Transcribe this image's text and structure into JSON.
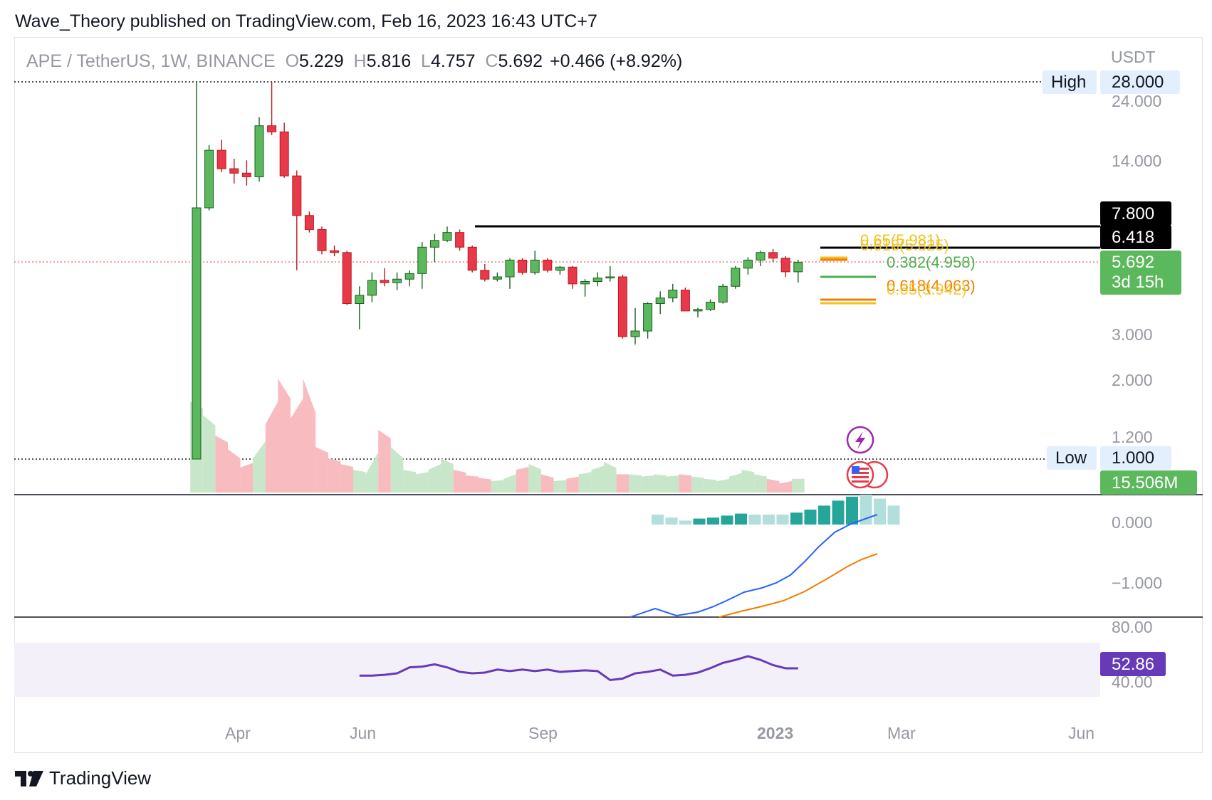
{
  "header": {
    "published_line": "Wave_Theory published on TradingView.com, Feb 16, 2023 16:43 UTC+7"
  },
  "legend": {
    "symbol": "APE / TetherUS, 1W, BINANCE",
    "o_label": "O",
    "o_value": "5.229",
    "h_label": "H",
    "h_value": "5.816",
    "l_label": "L",
    "l_value": "4.757",
    "c_label": "C",
    "c_value": "5.692",
    "change": "+0.466 (+8.92%)"
  },
  "footer": {
    "brand": "TradingView"
  },
  "colors": {
    "up": "#26a69a",
    "up_candle": "#5cb85c",
    "down_candle": "#e8394a",
    "macd": "#2962ff",
    "signal": "#f57c00",
    "rsi": "#673ab7",
    "fib_gold": "#f2c21b",
    "fib_orange": "#f57c00",
    "fib_green": "#4caf50"
  },
  "price_axis": {
    "unit": "USDT",
    "labels": [
      "28.000",
      "24.000",
      "14.000",
      "3.000",
      "2.000",
      "1.200"
    ],
    "high_label": "High",
    "high_value": "28.000",
    "low_label": "Low",
    "low_value": "1.000",
    "tag_7800": "7.800",
    "tag_6418": "6.418",
    "current_price": "5.692",
    "countdown": "3d 15h",
    "volume_tag": "15.506M"
  },
  "fib_labels": {
    "upper_a": "0.65(5.981)",
    "upper_b": "0.618(5.825)",
    "mid": "0.382(4.958)",
    "lower_a": "0.618(4.063)",
    "lower_b": "0.65(3.942)"
  },
  "macd_axis": {
    "labels": [
      "0.000",
      "−1.000"
    ]
  },
  "rsi_axis": {
    "labels": [
      "80.00",
      "40.00"
    ],
    "current": "52.86"
  },
  "time_axis": {
    "labels": [
      "Apr",
      "Jun",
      "Sep",
      "2023",
      "Mar",
      "Jun"
    ]
  },
  "chart_data": {
    "type": "candlestick",
    "symbol": "APE / TetherUS",
    "interval": "1W",
    "candles": [
      {
        "o": 1.0,
        "h": 28.0,
        "l": 1.0,
        "c": 9.2
      },
      {
        "o": 9.2,
        "h": 16.0,
        "l": 9.0,
        "c": 15.3
      },
      {
        "o": 15.3,
        "h": 16.8,
        "l": 12.6,
        "c": 13.0
      },
      {
        "o": 13.0,
        "h": 14.2,
        "l": 11.4,
        "c": 12.5
      },
      {
        "o": 12.5,
        "h": 14.0,
        "l": 11.2,
        "c": 12.1
      },
      {
        "o": 12.1,
        "h": 20.5,
        "l": 11.6,
        "c": 19.0
      },
      {
        "o": 19.0,
        "h": 28.0,
        "l": 17.5,
        "c": 18.0
      },
      {
        "o": 18.0,
        "h": 19.5,
        "l": 12.0,
        "c": 12.2
      },
      {
        "o": 12.2,
        "h": 12.8,
        "l": 5.3,
        "c": 8.6
      },
      {
        "o": 8.6,
        "h": 8.9,
        "l": 7.4,
        "c": 7.6
      },
      {
        "o": 7.6,
        "h": 7.8,
        "l": 6.1,
        "c": 6.3
      },
      {
        "o": 6.3,
        "h": 6.6,
        "l": 6.0,
        "c": 6.2
      },
      {
        "o": 6.2,
        "h": 6.3,
        "l": 3.9,
        "c": 3.95
      },
      {
        "o": 3.95,
        "h": 4.6,
        "l": 3.15,
        "c": 4.25
      },
      {
        "o": 4.25,
        "h": 5.2,
        "l": 4.0,
        "c": 4.85
      },
      {
        "o": 4.85,
        "h": 5.4,
        "l": 4.6,
        "c": 4.75
      },
      {
        "o": 4.75,
        "h": 5.2,
        "l": 4.45,
        "c": 4.9
      },
      {
        "o": 4.9,
        "h": 5.3,
        "l": 4.6,
        "c": 5.15
      },
      {
        "o": 5.15,
        "h": 6.8,
        "l": 4.5,
        "c": 6.5
      },
      {
        "o": 6.5,
        "h": 7.3,
        "l": 5.7,
        "c": 6.9
      },
      {
        "o": 6.9,
        "h": 7.8,
        "l": 6.8,
        "c": 7.4
      },
      {
        "o": 7.4,
        "h": 7.6,
        "l": 6.3,
        "c": 6.5
      },
      {
        "o": 6.5,
        "h": 6.6,
        "l": 5.2,
        "c": 5.3
      },
      {
        "o": 5.3,
        "h": 5.6,
        "l": 4.8,
        "c": 4.9
      },
      {
        "o": 4.9,
        "h": 5.2,
        "l": 4.8,
        "c": 5.0
      },
      {
        "o": 5.0,
        "h": 5.9,
        "l": 4.5,
        "c": 5.8
      },
      {
        "o": 5.8,
        "h": 5.9,
        "l": 5.1,
        "c": 5.2
      },
      {
        "o": 5.2,
        "h": 6.3,
        "l": 5.1,
        "c": 5.8
      },
      {
        "o": 5.8,
        "h": 5.9,
        "l": 5.2,
        "c": 5.3
      },
      {
        "o": 5.3,
        "h": 5.5,
        "l": 5.1,
        "c": 5.45
      },
      {
        "o": 5.45,
        "h": 5.5,
        "l": 4.5,
        "c": 4.7
      },
      {
        "o": 4.7,
        "h": 4.9,
        "l": 4.2,
        "c": 4.8
      },
      {
        "o": 4.8,
        "h": 5.2,
        "l": 4.6,
        "c": 4.95
      },
      {
        "o": 4.95,
        "h": 5.5,
        "l": 4.8,
        "c": 5.0
      },
      {
        "o": 5.0,
        "h": 5.1,
        "l": 2.9,
        "c": 2.95
      },
      {
        "o": 2.95,
        "h": 3.8,
        "l": 2.75,
        "c": 3.1
      },
      {
        "o": 3.1,
        "h": 4.0,
        "l": 2.9,
        "c": 3.95
      },
      {
        "o": 3.95,
        "h": 4.4,
        "l": 3.6,
        "c": 4.15
      },
      {
        "o": 4.15,
        "h": 4.7,
        "l": 4.0,
        "c": 4.45
      },
      {
        "o": 4.45,
        "h": 4.55,
        "l": 3.9,
        "c": 3.7
      },
      {
        "o": 3.7,
        "h": 3.8,
        "l": 3.5,
        "c": 3.75
      },
      {
        "o": 3.75,
        "h": 4.1,
        "l": 3.7,
        "c": 4.0
      },
      {
        "o": 4.0,
        "h": 4.7,
        "l": 3.95,
        "c": 4.6
      },
      {
        "o": 4.6,
        "h": 5.5,
        "l": 4.5,
        "c": 5.4
      },
      {
        "o": 5.4,
        "h": 5.95,
        "l": 5.1,
        "c": 5.8
      },
      {
        "o": 5.8,
        "h": 6.3,
        "l": 5.5,
        "c": 6.2
      },
      {
        "o": 6.2,
        "h": 6.4,
        "l": 5.7,
        "c": 5.9
      },
      {
        "o": 5.9,
        "h": 6.0,
        "l": 5.0,
        "c": 5.229
      },
      {
        "o": 5.229,
        "h": 5.816,
        "l": 4.757,
        "c": 5.692
      }
    ],
    "volume_relative": [
      0.8,
      0.68,
      0.5,
      0.38,
      0.22,
      0.3,
      0.6,
      1.0,
      0.65,
      1.0,
      0.4,
      0.3,
      0.25,
      0.2,
      0.16,
      0.55,
      0.4,
      0.2,
      0.16,
      0.2,
      0.3,
      0.2,
      0.15,
      0.13,
      0.1,
      0.12,
      0.2,
      0.25,
      0.16,
      0.1,
      0.12,
      0.16,
      0.2,
      0.27,
      0.16,
      0.16,
      0.14,
      0.16,
      0.14,
      0.16,
      0.14,
      0.12,
      0.1,
      0.14,
      0.2,
      0.16,
      0.12,
      0.08,
      0.12
    ],
    "rsi": [
      null,
      null,
      null,
      null,
      null,
      null,
      null,
      null,
      null,
      null,
      null,
      null,
      null,
      48.0,
      48.0,
      48.5,
      49.5,
      53.5,
      54.0,
      55.5,
      53.5,
      50.5,
      49.5,
      50.0,
      52.0,
      51.0,
      52.0,
      51.0,
      52.0,
      50.5,
      51.0,
      51.5,
      51.0,
      45.0,
      46.0,
      49.5,
      50.5,
      52.0,
      48.0,
      48.5,
      50.0,
      53.0,
      56.5,
      58.5,
      61.0,
      58.5,
      55.0,
      52.86,
      52.86
    ],
    "fib_levels": [
      {
        "ratio": 0.65,
        "price": 5.981
      },
      {
        "ratio": 0.618,
        "price": 5.825
      },
      {
        "ratio": 0.382,
        "price": 4.958
      },
      {
        "ratio": 0.618,
        "price": 4.063
      },
      {
        "ratio": 0.65,
        "price": 3.942
      }
    ],
    "horizontal_levels": [
      7.8,
      6.418
    ],
    "price_range": [
      1.0,
      28.0
    ],
    "rsi_range": [
      40,
      80
    ]
  }
}
